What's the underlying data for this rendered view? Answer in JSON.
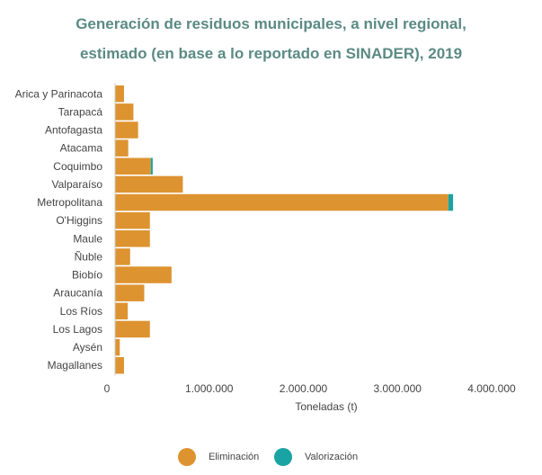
{
  "chart_data": {
    "type": "bar",
    "orientation": "horizontal",
    "stacked": true,
    "title_line1": "Generación de residuos municipales, a nivel regional,",
    "title_line2": "estimado (en base a lo reportado en SINADER), 2019",
    "xlabel": "Toneladas (t)",
    "ylabel": "",
    "xlim": [
      0,
      4000000
    ],
    "x_ticks": [
      0,
      1000000,
      2000000,
      3000000,
      4000000
    ],
    "x_tick_labels": [
      "0",
      "1.000.000",
      "2.000.000",
      "3.000.000",
      "4.000.000"
    ],
    "categories": [
      "Arica y Parinacota",
      "Tarapacá",
      "Antofagasta",
      "Atacama",
      "Coquimbo",
      "Valparaíso",
      "Metropolitana",
      "O'Higgins",
      "Maule",
      "Ñuble",
      "Biobío",
      "Araucanía",
      "Los Ríos",
      "Los Lagos",
      "Aysén",
      "Magallanes"
    ],
    "series": [
      {
        "name": "Eliminación",
        "color": "#dd9330",
        "values": [
          95000,
          195000,
          245000,
          140000,
          380000,
          720000,
          3540000,
          370000,
          370000,
          160000,
          600000,
          310000,
          135000,
          370000,
          50000,
          95000
        ]
      },
      {
        "name": "Valorización",
        "color": "#1aa3a3",
        "values": [
          0,
          0,
          0,
          0,
          20000,
          0,
          50000,
          0,
          0,
          0,
          0,
          0,
          0,
          0,
          0,
          0
        ]
      }
    ],
    "legend_position": "bottom-center",
    "grid": false
  }
}
